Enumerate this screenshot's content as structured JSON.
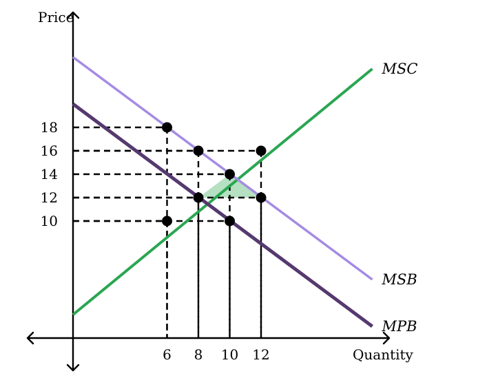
{
  "chart_data": {
    "type": "line",
    "title": "",
    "xlabel": "Quantity",
    "ylabel": "Price",
    "xlim": [
      0,
      20
    ],
    "ylim": [
      0,
      24
    ],
    "x_ticks": [
      6,
      8,
      10,
      12
    ],
    "y_ticks": [
      10,
      12,
      14,
      16,
      18
    ],
    "grid": false,
    "series": [
      {
        "name": "MSC",
        "color": "#2aa651",
        "line_width": 4,
        "x": [
          0,
          19.1
        ],
        "y": [
          2,
          23
        ]
      },
      {
        "name": "MSB",
        "color": "#a58be3",
        "line_width": 3.5,
        "x": [
          0,
          19.1
        ],
        "y": [
          24,
          5
        ]
      },
      {
        "name": "MPB",
        "color": "#55396f",
        "line_width": 5,
        "x": [
          0,
          19.1
        ],
        "y": [
          20,
          1
        ]
      }
    ],
    "points": [
      {
        "x": 6,
        "y": 18
      },
      {
        "x": 8,
        "y": 16
      },
      {
        "x": 12,
        "y": 16
      },
      {
        "x": 10,
        "y": 14
      },
      {
        "x": 8,
        "y": 12
      },
      {
        "x": 12,
        "y": 12
      },
      {
        "x": 6,
        "y": 10
      },
      {
        "x": 10,
        "y": 10
      }
    ],
    "shaded_region": {
      "color": "#2aa651",
      "opacity": 0.35,
      "vertices": [
        {
          "x": 8,
          "y": 12
        },
        {
          "x": 10,
          "y": 14
        },
        {
          "x": 12,
          "y": 12
        }
      ]
    },
    "guide_lines": {
      "style": "dashed",
      "color": "#000000"
    }
  }
}
